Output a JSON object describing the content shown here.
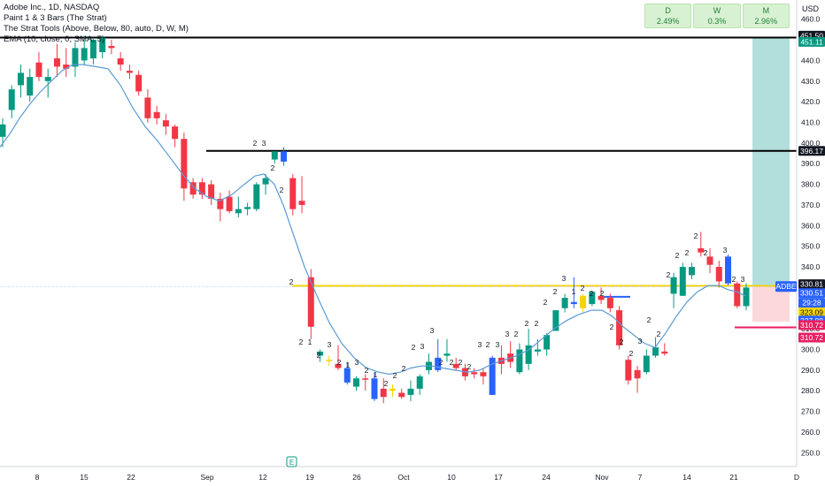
{
  "legend": {
    "line1": "Adobe Inc., 1D, NASDAQ",
    "line2": "Paint 1 & 3 Bars (The Strat)",
    "line3": "The Strat Tools (Above, Below, 80, auto, D, W, M)",
    "line4": "EMA (10, close, 0, SMA, 5)"
  },
  "panel": {
    "d_label": "D",
    "d_value": "2.49%",
    "w_label": "W",
    "w_value": "0.3%",
    "m_label": "M",
    "m_value": "2.96%"
  },
  "currency": "USD",
  "colors": {
    "up": "#089981",
    "down": "#f23645",
    "blue_bar": "#2962ff",
    "ema": "#5b9bd5",
    "level_line": "#000000",
    "yellow_line": "#f5d400",
    "target_zone": "#b2dfdb",
    "stop_zone": "#fdd8db",
    "stop_line": "#e91e63"
  },
  "chart_data": {
    "type": "candlestick",
    "title": "Adobe Inc., 1D, NASDAQ",
    "y_ticks": [
      250,
      260,
      270,
      280,
      290,
      300,
      310,
      320,
      330,
      340,
      350,
      360,
      370,
      380,
      390,
      400,
      410,
      420,
      430,
      440,
      450,
      460
    ],
    "ylim": [
      245,
      465
    ],
    "x_ticks": [
      "8",
      "15",
      "22",
      "Sep",
      "12",
      "19",
      "26",
      "Oct",
      "10",
      "17",
      "24",
      "Nov",
      "7",
      "14",
      "21",
      "D"
    ],
    "candles": [
      {
        "o": 403,
        "h": 412,
        "l": 398,
        "c": 409,
        "col": "up"
      },
      {
        "o": 416,
        "h": 428,
        "l": 412,
        "c": 426,
        "col": "up"
      },
      {
        "o": 428,
        "h": 438,
        "l": 422,
        "c": 434,
        "col": "up"
      },
      {
        "o": 423,
        "h": 436,
        "l": 420,
        "c": 432,
        "col": "up"
      },
      {
        "o": 439,
        "h": 444,
        "l": 430,
        "c": 432,
        "col": "down"
      },
      {
        "o": 430,
        "h": 436,
        "l": 422,
        "c": 432,
        "col": "up"
      },
      {
        "o": 437,
        "h": 448,
        "l": 432,
        "c": 441,
        "col": "down"
      },
      {
        "o": 438,
        "h": 446,
        "l": 432,
        "c": 436,
        "col": "down"
      },
      {
        "o": 437,
        "h": 449,
        "l": 432,
        "c": 446,
        "col": "up"
      },
      {
        "o": 446,
        "h": 452,
        "l": 438,
        "c": 440,
        "col": "up"
      },
      {
        "o": 441,
        "h": 451,
        "l": 438,
        "c": 450,
        "col": "up"
      },
      {
        "o": 451,
        "h": 452,
        "l": 441,
        "c": 444,
        "col": "up"
      },
      {
        "o": 446,
        "h": 450,
        "l": 443,
        "c": 447,
        "col": "down"
      },
      {
        "o": 441,
        "h": 444,
        "l": 435,
        "c": 438,
        "col": "down"
      },
      {
        "o": 435,
        "h": 438,
        "l": 431,
        "c": 434,
        "col": "down"
      },
      {
        "o": 433,
        "h": 435,
        "l": 423,
        "c": 425,
        "col": "down"
      },
      {
        "o": 422,
        "h": 426,
        "l": 410,
        "c": 412,
        "col": "down"
      },
      {
        "o": 415,
        "h": 418,
        "l": 409,
        "c": 412,
        "col": "down"
      },
      {
        "o": 411,
        "h": 414,
        "l": 404,
        "c": 408,
        "col": "down"
      },
      {
        "o": 408,
        "h": 409,
        "l": 398,
        "c": 402,
        "col": "down"
      },
      {
        "o": 402,
        "h": 405,
        "l": 372,
        "c": 378,
        "col": "down"
      },
      {
        "o": 381,
        "h": 383,
        "l": 373,
        "c": 375,
        "col": "down"
      },
      {
        "o": 381,
        "h": 383,
        "l": 373,
        "c": 375,
        "col": "down"
      },
      {
        "o": 380,
        "h": 382,
        "l": 370,
        "c": 373,
        "col": "down"
      },
      {
        "o": 373,
        "h": 376,
        "l": 362,
        "c": 368,
        "col": "down"
      },
      {
        "o": 367,
        "h": 377,
        "l": 366,
        "c": 374,
        "col": "down"
      },
      {
        "o": 366,
        "h": 374,
        "l": 364,
        "c": 368,
        "col": "up"
      },
      {
        "o": 368,
        "h": 371,
        "l": 365,
        "c": 369,
        "col": "up"
      },
      {
        "o": 368,
        "h": 381,
        "l": 367,
        "c": 380,
        "col": "up"
      },
      {
        "o": 380,
        "h": 385,
        "l": 375,
        "c": 383,
        "col": "up"
      },
      {
        "o": 392,
        "h": 396,
        "l": 390,
        "c": 396,
        "col": "up"
      },
      {
        "o": 391,
        "h": 398,
        "l": 389,
        "c": 396,
        "col": "blue"
      },
      {
        "o": 383,
        "h": 385,
        "l": 365,
        "c": 368,
        "col": "down"
      },
      {
        "o": 372,
        "h": 384,
        "l": 366,
        "c": 370,
        "col": "down"
      },
      {
        "o": 335,
        "h": 339,
        "l": 305,
        "c": 311,
        "col": "down"
      },
      {
        "o": 299,
        "h": 300,
        "l": 294,
        "c": 297,
        "col": "up"
      },
      {
        "o": 295,
        "h": 297,
        "l": 292,
        "c": 295,
        "col": "yellow"
      },
      {
        "o": 293,
        "h": 302,
        "l": 290,
        "c": 291,
        "col": "down"
      },
      {
        "o": 291,
        "h": 294,
        "l": 283,
        "c": 284,
        "col": "blue"
      },
      {
        "o": 286,
        "h": 287,
        "l": 280,
        "c": 282,
        "col": "up"
      },
      {
        "o": 286,
        "h": 288,
        "l": 280,
        "c": 286,
        "col": "down"
      },
      {
        "o": 286,
        "h": 289,
        "l": 275,
        "c": 276,
        "col": "blue"
      },
      {
        "o": 281,
        "h": 286,
        "l": 274,
        "c": 277,
        "col": "down"
      },
      {
        "o": 281,
        "h": 283,
        "l": 277,
        "c": 280,
        "col": "yellow"
      },
      {
        "o": 279,
        "h": 281,
        "l": 276,
        "c": 277,
        "col": "down"
      },
      {
        "o": 278,
        "h": 285,
        "l": 275,
        "c": 281,
        "col": "up"
      },
      {
        "o": 281,
        "h": 288,
        "l": 278,
        "c": 287,
        "col": "up"
      },
      {
        "o": 290,
        "h": 298,
        "l": 288,
        "c": 294,
        "col": "up"
      },
      {
        "o": 296,
        "h": 305,
        "l": 289,
        "c": 290,
        "col": "blue"
      },
      {
        "o": 297,
        "h": 305,
        "l": 294,
        "c": 298,
        "col": "up"
      },
      {
        "o": 293,
        "h": 296,
        "l": 290,
        "c": 291,
        "col": "down"
      },
      {
        "o": 291,
        "h": 293,
        "l": 285,
        "c": 287,
        "col": "down"
      },
      {
        "o": 289,
        "h": 291,
        "l": 286,
        "c": 288,
        "col": "down"
      },
      {
        "o": 289,
        "h": 291,
        "l": 283,
        "c": 287,
        "col": "down"
      },
      {
        "o": 278,
        "h": 297,
        "l": 278,
        "c": 296,
        "col": "blue"
      },
      {
        "o": 293,
        "h": 302,
        "l": 288,
        "c": 296,
        "col": "down"
      },
      {
        "o": 294,
        "h": 304,
        "l": 291,
        "c": 298,
        "col": "down"
      },
      {
        "o": 289,
        "h": 303,
        "l": 288,
        "c": 300,
        "col": "up"
      },
      {
        "o": 293,
        "h": 310,
        "l": 290,
        "c": 302,
        "col": "up"
      },
      {
        "o": 299,
        "h": 305,
        "l": 297,
        "c": 300,
        "col": "up"
      },
      {
        "o": 300,
        "h": 308,
        "l": 297,
        "c": 307,
        "col": "up"
      },
      {
        "o": 309,
        "h": 318,
        "l": 309,
        "c": 319,
        "col": "up"
      },
      {
        "o": 320,
        "h": 327,
        "l": 318,
        "c": 325,
        "col": "up"
      },
      {
        "o": 322,
        "h": 335,
        "l": 320,
        "c": 323,
        "col": "blue"
      },
      {
        "o": 320,
        "h": 327,
        "l": 318,
        "c": 326,
        "col": "yellow"
      },
      {
        "o": 322,
        "h": 328,
        "l": 321,
        "c": 328,
        "col": "up"
      },
      {
        "o": 326,
        "h": 330,
        "l": 322,
        "c": 324,
        "col": "down"
      },
      {
        "o": 325,
        "h": 327,
        "l": 318,
        "c": 320,
        "col": "down"
      },
      {
        "o": 319,
        "h": 321,
        "l": 300,
        "c": 302,
        "col": "down"
      },
      {
        "o": 295,
        "h": 297,
        "l": 283,
        "c": 285,
        "col": "down"
      },
      {
        "o": 290,
        "h": 292,
        "l": 279,
        "c": 286,
        "col": "down"
      },
      {
        "o": 289,
        "h": 300,
        "l": 288,
        "c": 297,
        "col": "up"
      },
      {
        "o": 297,
        "h": 306,
        "l": 296,
        "c": 301,
        "col": "up"
      },
      {
        "o": 299,
        "h": 303,
        "l": 297,
        "c": 298,
        "col": "down"
      },
      {
        "o": 327,
        "h": 337,
        "l": 320,
        "c": 335,
        "col": "up"
      },
      {
        "o": 326,
        "h": 342,
        "l": 326,
        "c": 340,
        "col": "up"
      },
      {
        "o": 340,
        "h": 342,
        "l": 334,
        "c": 336,
        "col": "up"
      },
      {
        "o": 349,
        "h": 357,
        "l": 345,
        "c": 347,
        "col": "down"
      },
      {
        "o": 345,
        "h": 349,
        "l": 337,
        "c": 341,
        "col": "down"
      },
      {
        "o": 340,
        "h": 343,
        "l": 330,
        "c": 333,
        "col": "down"
      },
      {
        "o": 345,
        "h": 346,
        "l": 331,
        "c": 332,
        "col": "blue"
      },
      {
        "o": 332,
        "h": 333,
        "l": 320,
        "c": 321,
        "col": "down"
      },
      {
        "o": 321,
        "h": 332,
        "l": 319,
        "c": 330,
        "col": "up"
      }
    ],
    "strat_marks": [
      {
        "t": "2",
        "x": 288,
        "y": 165
      },
      {
        "t": "3",
        "x": 298,
        "y": 165
      },
      {
        "t": "2",
        "x": 308,
        "y": 193
      },
      {
        "t": "2",
        "x": 318,
        "y": 218
      },
      {
        "t": "2",
        "x": 329,
        "y": 322
      },
      {
        "t": "2",
        "x": 340,
        "y": 390
      },
      {
        "t": "1",
        "x": 350,
        "y": 390
      },
      {
        "t": "2",
        "x": 360,
        "y": 405
      },
      {
        "t": "3",
        "x": 372,
        "y": 393
      },
      {
        "t": "2",
        "x": 383,
        "y": 413
      },
      {
        "t": "1",
        "x": 393,
        "y": 416
      },
      {
        "t": "3",
        "x": 403,
        "y": 413
      },
      {
        "t": "2",
        "x": 414,
        "y": 422
      },
      {
        "t": "1",
        "x": 424,
        "y": 427
      },
      {
        "t": "2",
        "x": 436,
        "y": 437
      },
      {
        "t": "2",
        "x": 446,
        "y": 428
      },
      {
        "t": "2",
        "x": 456,
        "y": 420
      },
      {
        "t": "2",
        "x": 467,
        "y": 396
      },
      {
        "t": "3",
        "x": 477,
        "y": 395
      },
      {
        "t": "3",
        "x": 488,
        "y": 377
      },
      {
        "t": "2",
        "x": 498,
        "y": 413
      },
      {
        "t": "2",
        "x": 510,
        "y": 413
      },
      {
        "t": "2",
        "x": 520,
        "y": 413
      },
      {
        "t": "2",
        "x": 530,
        "y": 418
      },
      {
        "t": "3",
        "x": 542,
        "y": 393
      },
      {
        "t": "2",
        "x": 551,
        "y": 393
      },
      {
        "t": "3",
        "x": 562,
        "y": 393
      },
      {
        "t": "3",
        "x": 573,
        "y": 381
      },
      {
        "t": "2",
        "x": 583,
        "y": 381
      },
      {
        "t": "2",
        "x": 595,
        "y": 369
      },
      {
        "t": "2",
        "x": 606,
        "y": 369
      },
      {
        "t": "2",
        "x": 616,
        "y": 345
      },
      {
        "t": "2",
        "x": 627,
        "y": 333
      },
      {
        "t": "3",
        "x": 637,
        "y": 318
      },
      {
        "t": "1",
        "x": 648,
        "y": 333
      },
      {
        "t": "2",
        "x": 658,
        "y": 329
      },
      {
        "t": "2",
        "x": 668,
        "y": 335
      },
      {
        "t": "2",
        "x": 680,
        "y": 335
      },
      {
        "t": "2",
        "x": 691,
        "y": 373
      },
      {
        "t": "2",
        "x": 702,
        "y": 390
      },
      {
        "t": "2",
        "x": 713,
        "y": 403
      },
      {
        "t": "3",
        "x": 723,
        "y": 389
      },
      {
        "t": "2",
        "x": 733,
        "y": 365
      },
      {
        "t": "2",
        "x": 744,
        "y": 381
      },
      {
        "t": "2",
        "x": 755,
        "y": 314
      },
      {
        "t": "2",
        "x": 765,
        "y": 292
      },
      {
        "t": "2",
        "x": 776,
        "y": 289
      },
      {
        "t": "2",
        "x": 786,
        "y": 270
      },
      {
        "t": "2",
        "x": 797,
        "y": 289
      },
      {
        "t": "3",
        "x": 819,
        "y": 286
      },
      {
        "t": "2",
        "x": 829,
        "y": 319
      },
      {
        "t": "3",
        "x": 839,
        "y": 319
      }
    ],
    "ema_points": [
      [
        0,
        398
      ],
      [
        12,
        405
      ],
      [
        22,
        412
      ],
      [
        34,
        419
      ],
      [
        46,
        425
      ],
      [
        58,
        430
      ],
      [
        70,
        435
      ],
      [
        82,
        438
      ],
      [
        94,
        438
      ],
      [
        108,
        437
      ],
      [
        122,
        436
      ],
      [
        136,
        428
      ],
      [
        150,
        417
      ],
      [
        164,
        408
      ],
      [
        178,
        401
      ],
      [
        192,
        393
      ],
      [
        206,
        385
      ],
      [
        220,
        378
      ],
      [
        234,
        374
      ],
      [
        248,
        372
      ],
      [
        262,
        375
      ],
      [
        276,
        380
      ],
      [
        288,
        384
      ],
      [
        298,
        385
      ],
      [
        310,
        380
      ],
      [
        320,
        370
      ],
      [
        332,
        355
      ],
      [
        344,
        340
      ],
      [
        358,
        326
      ],
      [
        372,
        313
      ],
      [
        386,
        303
      ],
      [
        400,
        296
      ],
      [
        414,
        291
      ],
      [
        428,
        289
      ],
      [
        440,
        288
      ],
      [
        452,
        289
      ],
      [
        464,
        291
      ],
      [
        476,
        292
      ],
      [
        488,
        292
      ],
      [
        500,
        291
      ],
      [
        514,
        290
      ],
      [
        528,
        289
      ],
      [
        542,
        290
      ],
      [
        556,
        293
      ],
      [
        570,
        295
      ],
      [
        584,
        297
      ],
      [
        598,
        300
      ],
      [
        612,
        305
      ],
      [
        626,
        310
      ],
      [
        640,
        314
      ],
      [
        654,
        317
      ],
      [
        668,
        319
      ],
      [
        680,
        319
      ],
      [
        692,
        316
      ],
      [
        704,
        311
      ],
      [
        716,
        307
      ],
      [
        728,
        303
      ],
      [
        740,
        301
      ],
      [
        752,
        308
      ],
      [
        764,
        316
      ],
      [
        776,
        323
      ],
      [
        788,
        328
      ],
      [
        800,
        331
      ],
      [
        812,
        331
      ],
      [
        822,
        329
      ],
      [
        832,
        328
      ],
      [
        842,
        326
      ]
    ],
    "levels": [
      {
        "price": 451.1,
        "color": "#000000",
        "x0": 0,
        "x1": 900
      },
      {
        "price": 396.17,
        "color": "#000000",
        "x0": 233,
        "x1": 900
      },
      {
        "price": 330.81,
        "color": "#f5d400",
        "x0": 330,
        "x1": 900
      },
      {
        "price": 310.72,
        "color": "#e91e63",
        "x0": 830,
        "x1": 900
      },
      {
        "price": 325.5,
        "color": "#2962ff",
        "x0": 680,
        "x1": 712
      }
    ],
    "zones": [
      {
        "from": 330.51,
        "to": 451.1,
        "color": "#b2dfdb"
      },
      {
        "from": 313.5,
        "to": 330.51,
        "color": "#fdd8db"
      }
    ],
    "price_tags": [
      {
        "label": "451.50",
        "price": 452.0,
        "bg": "#131722",
        "fg": "#ffffff"
      },
      {
        "label": "451.11",
        "price": 449.0,
        "bg": "#089981",
        "fg": "#ffffff"
      },
      {
        "label": "396.17",
        "price": 396.17,
        "bg": "#131722",
        "fg": "#ffffff"
      },
      {
        "label": "330.81",
        "price": 331.6,
        "bg": "#131722",
        "fg": "#ffffff"
      },
      {
        "label": "330.51",
        "price": 327.3,
        "bg": "#2962ff",
        "fg": "#ffffff"
      },
      {
        "label": "29:28",
        "price": 322.6,
        "bg": "#2962ff",
        "fg": "#ffffff"
      },
      {
        "label": "323.09",
        "price": 318.0,
        "bg": "#f5d400",
        "fg": "#131722"
      },
      {
        "label": "327.88",
        "price": 314.0,
        "bg": "#2962ff",
        "fg": "#ffffff"
      },
      {
        "label": "310.72",
        "price": 311.8,
        "bg": "#e91e63",
        "fg": "#ffffff"
      },
      {
        "label": "310.72",
        "price": 305.8,
        "bg": "#e91e63",
        "fg": "#ffffff"
      }
    ],
    "symbol_tag": "ADBE"
  }
}
